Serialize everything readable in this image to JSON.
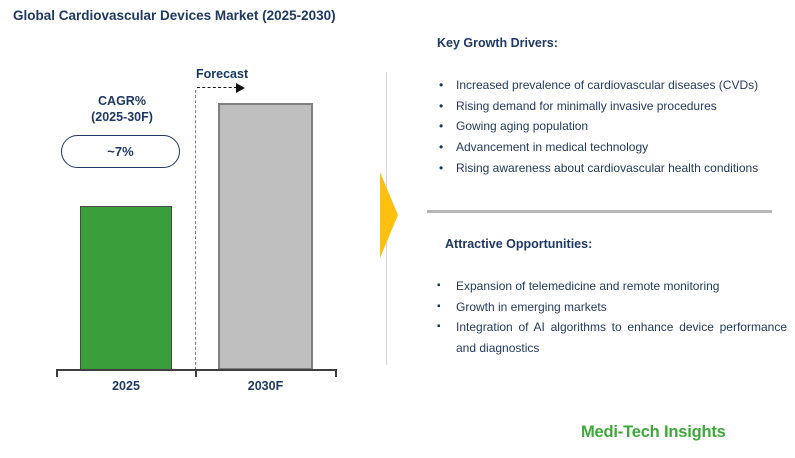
{
  "title": "Global Cardiovascular Devices Market (2025-2030)",
  "chart": {
    "cagr_label_line1": "CAGR%",
    "cagr_label_line2": "(2025-30F)",
    "cagr_value": "~7%",
    "forecast_label": "Forecast"
  },
  "chart_data": {
    "type": "bar",
    "title": "Global Cardiovascular Devices Market (2025-2030)",
    "categories": [
      "2025",
      "2030F"
    ],
    "values": [
      100,
      163
    ],
    "values_note": "No numeric value axis is shown; values are relative bar heights with 2025 indexed to 100",
    "xlabel": "",
    "ylabel": "",
    "y_axis_shown": false,
    "grid": false,
    "legend": false,
    "bar_colors": [
      "#3A9E3A",
      "#BFBFBF"
    ],
    "annotations": [
      "CAGR% (2025-30F)",
      "~7%",
      "Forecast"
    ]
  },
  "growth_drivers": {
    "heading": "Key Growth Drivers:",
    "items": [
      "Increased prevalence of cardiovascular diseases (CVDs)",
      "Rising demand for minimally invasive procedures",
      "Gowing aging population",
      "Advancement in medical technology",
      "Rising awareness about cardiovascular health conditions"
    ]
  },
  "opportunities": {
    "heading": "Attractive Opportunities:",
    "items": [
      "Expansion of telemedicine and remote monitoring",
      "Growth in emerging markets",
      "Integration of AI algorithms to enhance device performance and diagnostics"
    ]
  },
  "logo": "Medi-Tech Insights",
  "colors": {
    "heading_navy": "#1F3864",
    "body_navy": "#243A5E",
    "bar_green": "#3A9E3A",
    "bar_gray": "#BFBFBF",
    "arrow_yellow": "#FFC010",
    "logo_green": "#3EA83B"
  }
}
